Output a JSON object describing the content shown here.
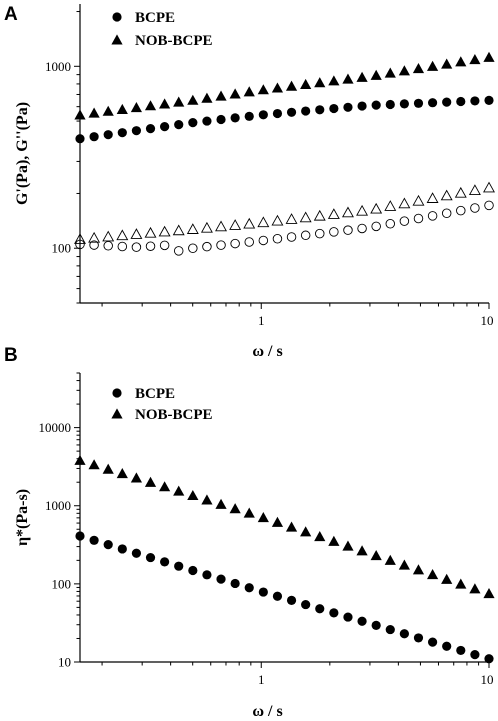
{
  "chart_data": [
    {
      "panel_label": "A",
      "type": "scatter",
      "xlabel": "ω / s",
      "ylabel": "G'(Pa), G''(Pa)",
      "x_scale": "log",
      "y_scale": "log",
      "xlim": [
        0.16,
        10
      ],
      "ylim": [
        50,
        2200
      ],
      "x_ticks": [
        {
          "value": 1,
          "label": "1"
        },
        {
          "value": 10,
          "label": "10"
        }
      ],
      "y_ticks": [
        {
          "value": 100,
          "label": "100"
        },
        {
          "value": 1000,
          "label": "1000"
        }
      ],
      "legend_position": "top-left",
      "legend": [
        {
          "label": "BCPE",
          "marker": "circle"
        },
        {
          "label": "NOB-BCPE",
          "marker": "triangle"
        }
      ],
      "series": [
        {
          "name": "BCPE",
          "marker": "circle",
          "filled": true,
          "x_range": [
            0.16,
            10
          ],
          "anchors": [
            [
              0.16,
              400
            ],
            [
              0.5,
              490
            ],
            [
              1,
              540
            ],
            [
              3,
              610
            ],
            [
              10,
              650
            ]
          ]
        },
        {
          "name": "NOB-BCPE",
          "marker": "triangle",
          "filled": true,
          "x_range": [
            0.16,
            10
          ],
          "anchors": [
            [
              0.16,
              540
            ],
            [
              0.5,
              650
            ],
            [
              1,
              740
            ],
            [
              3,
              880
            ],
            [
              10,
              1120
            ]
          ]
        },
        {
          "name": "BCPE",
          "marker": "circle",
          "filled": false,
          "x_range": [
            0.16,
            10
          ],
          "anchors": [
            [
              0.16,
              105
            ],
            [
              0.3,
              101
            ],
            [
              0.37,
              105
            ],
            [
              0.42,
              96
            ],
            [
              0.5,
              100
            ],
            [
              1,
              110
            ],
            [
              3,
              130
            ],
            [
              10,
              172
            ]
          ]
        },
        {
          "name": "NOB-BCPE",
          "marker": "triangle",
          "filled": false,
          "x_range": [
            0.16,
            10
          ],
          "anchors": [
            [
              0.16,
              112
            ],
            [
              0.5,
              127
            ],
            [
              1,
              138
            ],
            [
              3,
              162
            ],
            [
              10,
              215
            ]
          ]
        }
      ]
    },
    {
      "panel_label": "B",
      "type": "scatter",
      "xlabel": "ω / s",
      "ylabel": "η*(Pa-s)",
      "x_scale": "log",
      "y_scale": "log",
      "xlim": [
        0.16,
        10
      ],
      "ylim": [
        10,
        50000
      ],
      "x_ticks": [
        {
          "value": 1,
          "label": "1"
        },
        {
          "value": 10,
          "label": "10"
        }
      ],
      "y_ticks": [
        {
          "value": 10,
          "label": "10"
        },
        {
          "value": 100,
          "label": "100"
        },
        {
          "value": 1000,
          "label": "1000"
        },
        {
          "value": 10000,
          "label": "10000"
        }
      ],
      "legend_position": "top-left",
      "legend": [
        {
          "label": "BCPE",
          "marker": "circle"
        },
        {
          "label": "NOB-BCPE",
          "marker": "triangle"
        }
      ],
      "series": [
        {
          "name": "BCPE",
          "marker": "circle",
          "filled": true,
          "x_range": [
            0.16,
            10
          ],
          "anchors": [
            [
              0.16,
              410
            ],
            [
              1,
              80
            ],
            [
              10,
              11
            ]
          ]
        },
        {
          "name": "NOB-BCPE",
          "marker": "triangle",
          "filled": true,
          "x_range": [
            0.16,
            10
          ],
          "anchors": [
            [
              0.16,
              3800
            ],
            [
              1,
              720
            ],
            [
              10,
              75
            ]
          ]
        }
      ]
    }
  ]
}
